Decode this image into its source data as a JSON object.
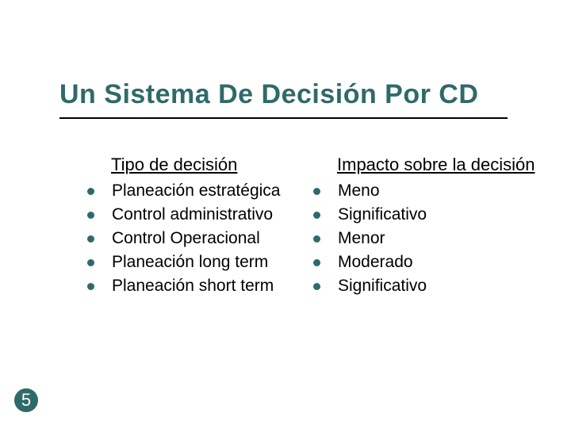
{
  "slide": {
    "title": "Un Sistema De Decisión Por CD",
    "title_color": "#2f6a6a",
    "rule_color": "#000000",
    "body_text_color": "#000000",
    "bullet_color": "#2f6a6a",
    "background_color": "#ffffff",
    "title_fontsize": 34,
    "header_fontsize": 22,
    "bullet_fontsize": 21,
    "left": {
      "header": "Tipo de decisión",
      "items": [
        "Planeación estratégica",
        "Control administrativo",
        "Control Operacional",
        "Planeación long term",
        "Planeación short term"
      ]
    },
    "right": {
      "header": "Impacto sobre la decisión",
      "items": [
        "Meno",
        "Significativo",
        "Menor",
        "Moderado",
        "Significativo"
      ]
    },
    "page_number": "5",
    "page_badge_bg": "#2f6a6a",
    "page_badge_fg": "#ffffff"
  }
}
